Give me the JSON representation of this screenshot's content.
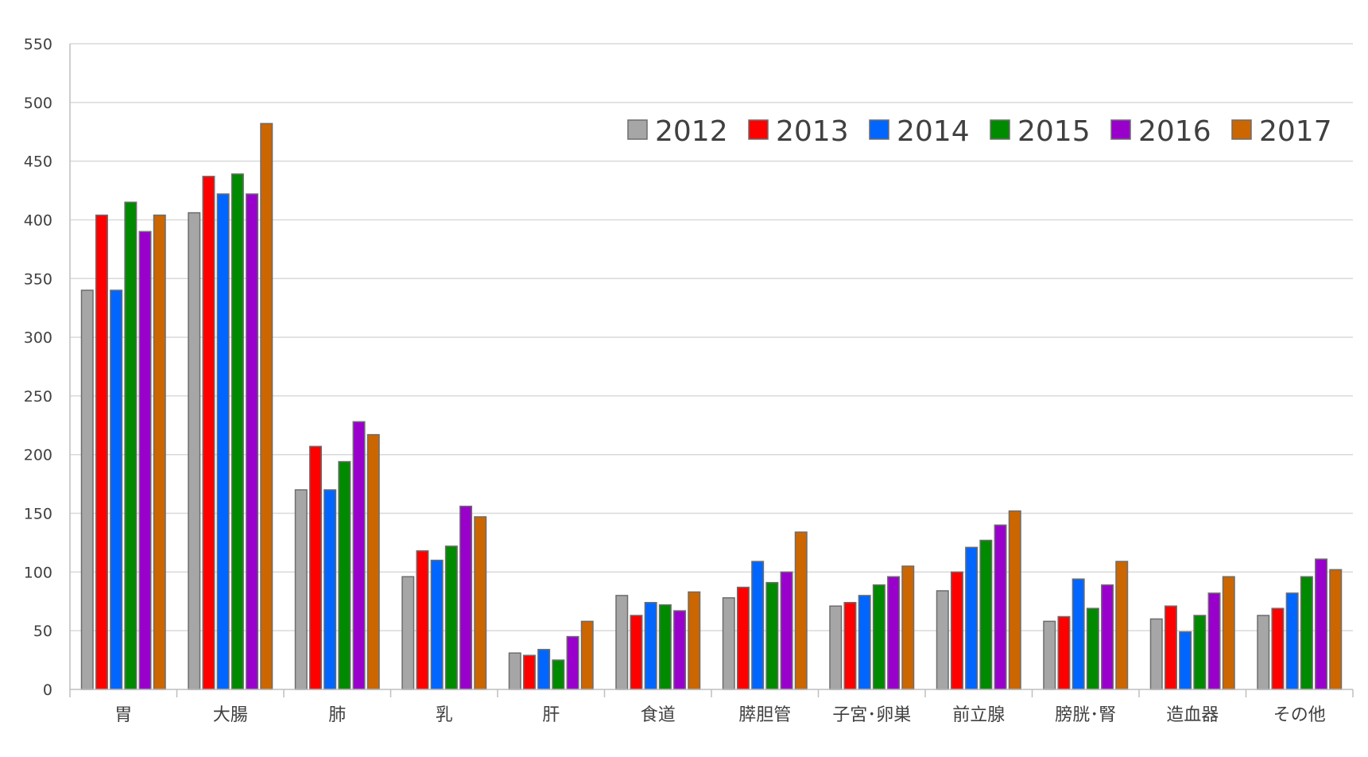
{
  "chart_data": {
    "type": "bar",
    "title": "",
    "xlabel": "",
    "ylabel": "",
    "ylim": [
      0,
      550
    ],
    "yticks": [
      0,
      50,
      100,
      150,
      200,
      250,
      300,
      350,
      400,
      450,
      500,
      550
    ],
    "grid": true,
    "legend_position": "top-right",
    "categories": [
      "胃",
      "大腸",
      "肺",
      "乳",
      "肝",
      "食道",
      "膵胆管",
      "子宮･卵巣",
      "前立腺",
      "膀胱･腎",
      "造血器",
      "その他"
    ],
    "series": [
      {
        "name": "2012",
        "color": "#a6a6a6",
        "values": [
          340,
          406,
          170,
          96,
          31,
          80,
          78,
          71,
          84,
          58,
          60,
          63
        ]
      },
      {
        "name": "2013",
        "color": "#ff0000",
        "values": [
          404,
          437,
          207,
          118,
          29,
          63,
          87,
          74,
          100,
          62,
          71,
          69
        ]
      },
      {
        "name": "2014",
        "color": "#0066ff",
        "values": [
          340,
          422,
          170,
          110,
          34,
          74,
          109,
          80,
          121,
          94,
          49,
          82
        ]
      },
      {
        "name": "2015",
        "color": "#008a00",
        "values": [
          415,
          439,
          194,
          122,
          25,
          72,
          91,
          89,
          127,
          69,
          63,
          96
        ]
      },
      {
        "name": "2016",
        "color": "#9900cc",
        "values": [
          390,
          422,
          228,
          156,
          45,
          67,
          100,
          96,
          140,
          89,
          82,
          111
        ]
      },
      {
        "name": "2017",
        "color": "#cc6600",
        "values": [
          404,
          482,
          217,
          147,
          58,
          83,
          134,
          105,
          152,
          109,
          96,
          102
        ]
      }
    ]
  }
}
